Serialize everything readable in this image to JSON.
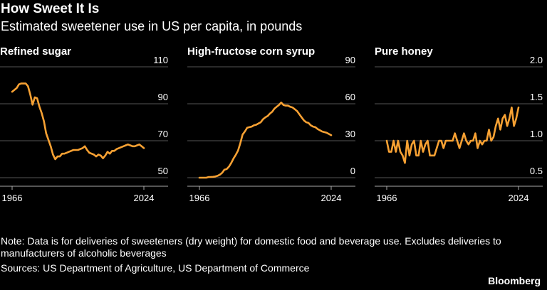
{
  "header": {
    "title": "How Sweet It Is",
    "subtitle": "Estimated sweetener use in US per capita, in pounds"
  },
  "colors": {
    "line": "#f7a133",
    "grid": "#555555",
    "text": "#ffffff",
    "background": "#000000"
  },
  "chart_data": [
    {
      "type": "line",
      "title": "Refined sugar",
      "ylim": [
        50,
        110
      ],
      "yticks": [
        50,
        70,
        90,
        110
      ],
      "xticks": [
        1966,
        2024
      ],
      "x": [
        1966,
        1967,
        1968,
        1969,
        1970,
        1971,
        1972,
        1973,
        1974,
        1975,
        1976,
        1977,
        1978,
        1979,
        1980,
        1981,
        1982,
        1983,
        1984,
        1985,
        1986,
        1987,
        1988,
        1989,
        1990,
        1991,
        1992,
        1993,
        1994,
        1995,
        1996,
        1997,
        1998,
        1999,
        2000,
        2001,
        2002,
        2003,
        2004,
        2005,
        2006,
        2007,
        2008,
        2009,
        2010,
        2011,
        2012,
        2013,
        2014,
        2015,
        2016,
        2017,
        2018,
        2019,
        2020,
        2021,
        2022,
        2023,
        2024
      ],
      "y": [
        96.5,
        97.5,
        98.5,
        100.5,
        101,
        101,
        101,
        99.5,
        95,
        89.5,
        93.5,
        93,
        88.5,
        85,
        80.5,
        74,
        70.5,
        67,
        62.5,
        60,
        61.5,
        61.5,
        63,
        63,
        63.5,
        64,
        64.5,
        65,
        65,
        65,
        65.5,
        66,
        67,
        65,
        63.5,
        63,
        62.5,
        61.5,
        62.5,
        62,
        60.5,
        62,
        64,
        63,
        64.5,
        64.5,
        65.5,
        66,
        66.5,
        67,
        67.5,
        68,
        67.5,
        67,
        67,
        67.5,
        68,
        67,
        66
      ]
    },
    {
      "type": "line",
      "title": "High-fructose corn syrup",
      "ylim": [
        0,
        90
      ],
      "yticks": [
        0,
        30,
        60,
        90
      ],
      "xticks": [
        1966,
        2024
      ],
      "x": [
        1966,
        1967,
        1968,
        1969,
        1970,
        1971,
        1972,
        1973,
        1974,
        1975,
        1976,
        1977,
        1978,
        1979,
        1980,
        1981,
        1982,
        1983,
        1984,
        1985,
        1986,
        1987,
        1988,
        1989,
        1990,
        1991,
        1992,
        1993,
        1994,
        1995,
        1996,
        1997,
        1998,
        1999,
        2000,
        2001,
        2002,
        2003,
        2004,
        2005,
        2006,
        2007,
        2008,
        2009,
        2010,
        2011,
        2012,
        2013,
        2014,
        2015,
        2016,
        2017,
        2018,
        2019,
        2020,
        2021,
        2022,
        2023,
        2024
      ],
      "y": [
        0,
        0,
        0,
        0,
        0.5,
        0.6,
        0.7,
        1,
        1.5,
        2.5,
        4,
        6.5,
        7,
        9,
        12,
        15.5,
        18.5,
        22,
        28,
        35,
        37.5,
        40.5,
        41,
        41.5,
        42.5,
        43,
        44,
        45,
        47.5,
        49,
        50,
        52,
        53.5,
        56,
        57.5,
        59,
        61,
        59,
        58.5,
        58.5,
        57.5,
        57,
        55.5,
        54,
        51.5,
        49,
        46.5,
        45,
        44.5,
        42.5,
        41.5,
        41,
        39.5,
        38.5,
        37.5,
        37,
        36.5,
        35.5,
        34.5
      ]
    },
    {
      "type": "line",
      "title": "Pure honey",
      "ylim": [
        0.5,
        2.0
      ],
      "yticks": [
        0.5,
        1.0,
        1.5,
        2.0
      ],
      "xticks": [
        1966,
        2024
      ],
      "x": [
        1966,
        1967,
        1968,
        1969,
        1970,
        1971,
        1972,
        1973,
        1974,
        1975,
        1976,
        1977,
        1978,
        1979,
        1980,
        1981,
        1982,
        1983,
        1984,
        1985,
        1986,
        1987,
        1988,
        1989,
        1990,
        1991,
        1992,
        1993,
        1994,
        1995,
        1996,
        1997,
        1998,
        1999,
        2000,
        2001,
        2002,
        2003,
        2004,
        2005,
        2006,
        2007,
        2008,
        2009,
        2010,
        2011,
        2012,
        2013,
        2014,
        2015,
        2016,
        2017,
        2018,
        2019,
        2020,
        2021,
        2022,
        2023,
        2024
      ],
      "y": [
        1.0,
        0.85,
        0.85,
        1.0,
        0.85,
        1.0,
        0.85,
        0.8,
        0.7,
        1.0,
        0.8,
        0.95,
        1.0,
        0.8,
        0.8,
        1.0,
        0.85,
        0.95,
        1.0,
        0.8,
        0.8,
        0.8,
        0.9,
        1.0,
        1.0,
        0.9,
        1.0,
        1.0,
        1.0,
        1.0,
        1.1,
        1.0,
        0.9,
        1.0,
        1.1,
        1.0,
        0.95,
        1.0,
        1.0,
        1.1,
        0.9,
        1.0,
        0.95,
        1.0,
        1.0,
        1.15,
        1.0,
        1.05,
        1.2,
        1.3,
        1.15,
        1.3,
        1.35,
        1.2,
        1.3,
        1.45,
        1.2,
        1.3,
        1.45
      ]
    }
  ],
  "footer": {
    "note": "Note: Data is for deliveries of sweeteners (dry weight) for domestic food and beverage use. Excludes deliveries to manufacturers of alcoholic beverages",
    "sources": "Sources: US Department of Agriculture, US Department of Commerce",
    "brand": "Bloomberg"
  }
}
